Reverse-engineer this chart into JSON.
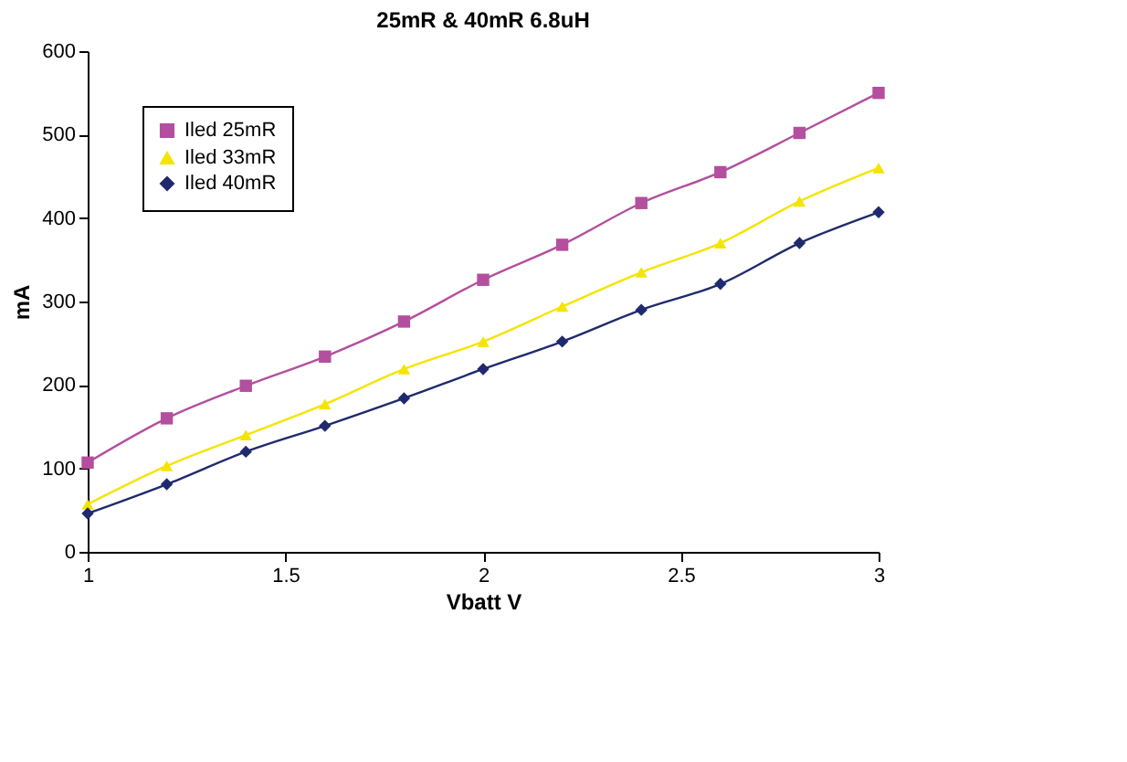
{
  "chart_data": {
    "type": "line",
    "title": "25mR & 40mR 6.8uH",
    "xlabel": "Vbatt V",
    "ylabel": "mA",
    "x": [
      1,
      1.2,
      1.4,
      1.6,
      1.8,
      2,
      2.2,
      2.4,
      2.6,
      2.8,
      3
    ],
    "series": [
      {
        "name": "Iled 25mR",
        "color": "#b34f9e",
        "marker": "square",
        "values": [
          107,
          160,
          199,
          234,
          276,
          326,
          368,
          418,
          455,
          502,
          550
        ]
      },
      {
        "name": "Iled 33mR",
        "color": "#f5e400",
        "marker": "triangle",
        "values": [
          57,
          103,
          140,
          177,
          219,
          252,
          294,
          335,
          370,
          420,
          460
        ]
      },
      {
        "name": "Iled 40mR",
        "color": "#1f2a6e",
        "marker": "diamond",
        "values": [
          46,
          81,
          120,
          151,
          184,
          219,
          252,
          290,
          321,
          370,
          407
        ]
      }
    ],
    "xlim": [
      1,
      3
    ],
    "xticks": [
      1,
      1.5,
      2,
      2.5,
      3
    ],
    "ylim": [
      0,
      600
    ],
    "yticks": [
      0,
      100,
      200,
      300,
      400,
      500,
      600
    ],
    "grid": false,
    "legend": "top left",
    "line_style": "solid"
  }
}
